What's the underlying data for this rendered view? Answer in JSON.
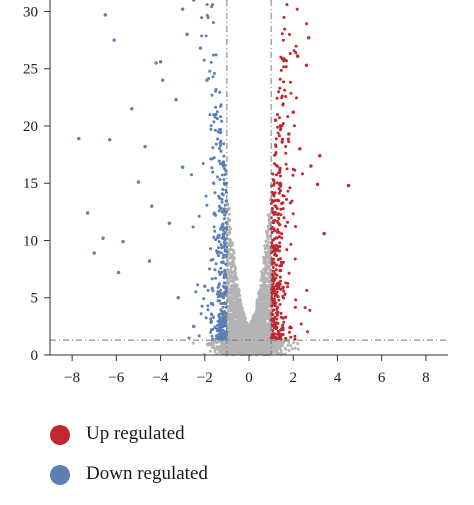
{
  "chart_data": {
    "type": "scatter",
    "title": "",
    "xlabel": "",
    "ylabel": "",
    "xlim": [
      -9,
      9
    ],
    "ylim": [
      0,
      31
    ],
    "xticks": [
      -8,
      -6,
      -4,
      -2,
      0,
      2,
      4,
      6,
      8
    ],
    "yticks": [
      0,
      5,
      10,
      15,
      20,
      25,
      30
    ],
    "thresholds": {
      "x": [
        -1,
        1
      ],
      "y": 1.3
    },
    "grid": false,
    "legend_position": "bottom-left",
    "series": [
      {
        "name": "Up regulated",
        "color": "#c0282d",
        "points": [
          [
            1.3,
            13.5
          ],
          [
            1.5,
            18.6
          ],
          [
            1.8,
            19.3
          ],
          [
            2.0,
            21.2
          ],
          [
            2.2,
            26.1
          ],
          [
            2.6,
            25.3
          ],
          [
            2.7,
            27.7
          ],
          [
            2.8,
            16.5
          ],
          [
            3.1,
            14.9
          ],
          [
            3.2,
            17.4
          ],
          [
            3.4,
            10.6
          ],
          [
            4.5,
            14.8
          ],
          [
            1.4,
            16.3
          ],
          [
            2.3,
            18.0
          ],
          [
            1.2,
            20.5
          ]
        ]
      },
      {
        "name": "Down regulated",
        "color": "#5b7fb4",
        "points": [
          [
            -6.5,
            29.7
          ],
          [
            -6.1,
            27.5
          ],
          [
            -7.7,
            18.9
          ],
          [
            -6.3,
            18.8
          ],
          [
            -5.3,
            21.5
          ],
          [
            -7.3,
            12.4
          ],
          [
            -7.0,
            8.9
          ],
          [
            -6.6,
            10.2
          ],
          [
            -4.2,
            25.5
          ],
          [
            -4.0,
            25.6
          ],
          [
            -3.9,
            24.0
          ],
          [
            -3.0,
            30.2
          ],
          [
            -2.5,
            31.0
          ],
          [
            -2.8,
            28.0
          ],
          [
            -3.3,
            22.3
          ],
          [
            -4.7,
            18.2
          ],
          [
            -5.0,
            15.1
          ],
          [
            -4.4,
            13.0
          ],
          [
            -5.7,
            9.9
          ],
          [
            -5.9,
            7.2
          ],
          [
            -4.5,
            8.2
          ],
          [
            -3.6,
            11.5
          ],
          [
            -3.0,
            16.4
          ],
          [
            -2.2,
            26.8
          ],
          [
            -1.9,
            24.0
          ],
          [
            -1.5,
            21.0
          ],
          [
            -1.3,
            18.5
          ],
          [
            -1.6,
            15.0
          ],
          [
            -1.2,
            12.5
          ],
          [
            -1.4,
            9.0
          ],
          [
            -2.0,
            6.0
          ],
          [
            -1.7,
            4.5
          ],
          [
            -1.2,
            3.0
          ],
          [
            -2.5,
            2.5
          ],
          [
            -3.2,
            5.0
          ]
        ]
      }
    ],
    "cloud_color": "#b4b4b4",
    "x_tick_labels": [
      "−8",
      "−6",
      "−4",
      "−2",
      "0",
      "2",
      "4",
      "6",
      "8"
    ],
    "y_tick_labels": [
      "0",
      "5",
      "10",
      "15",
      "20",
      "25",
      "30"
    ]
  },
  "legend": [
    {
      "label": "Up regulated",
      "color": "#c0282d"
    },
    {
      "label": "Down regulated",
      "color": "#5b7fb4"
    }
  ]
}
